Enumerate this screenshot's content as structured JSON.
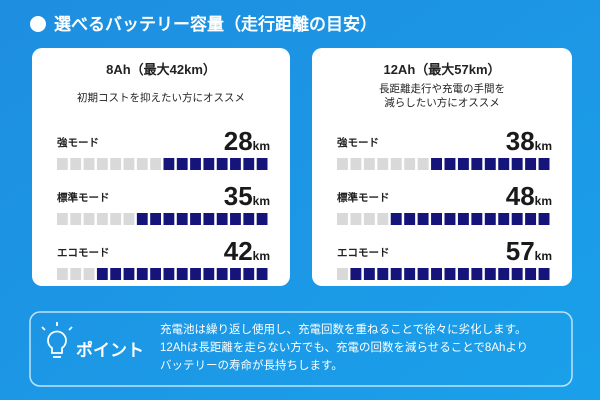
{
  "title": "選べるバッテリー容量（走行距離の目安）",
  "segments": 16,
  "cards": [
    {
      "title": "8Ah（最大42km）",
      "description": [
        "初期コストを抑えたい方にオススメ"
      ],
      "rows": [
        {
          "mode": "強モード",
          "distance": 28,
          "unit": "km",
          "filled": 8
        },
        {
          "mode": "標準モード",
          "distance": 35,
          "unit": "km",
          "filled": 10
        },
        {
          "mode": "エコモード",
          "distance": 42,
          "unit": "km",
          "filled": 13
        }
      ]
    },
    {
      "title": "12Ah（最大57km）",
      "description": [
        "長距離走行や充電の手間を",
        "減らしたい方にオススメ"
      ],
      "rows": [
        {
          "mode": "強モード",
          "distance": 38,
          "unit": "km",
          "filled": 9
        },
        {
          "mode": "標準モード",
          "distance": 48,
          "unit": "km",
          "filled": 12
        },
        {
          "mode": "エコモード",
          "distance": 57,
          "unit": "km",
          "filled": 15
        }
      ]
    }
  ],
  "point": {
    "label": "ポイント",
    "lines": [
      "充電池は繰り返し使用し、充電回数を重ねることで徐々に劣化します。",
      "12Ahは長距離を走らない方でも、充電の回数を減らせることで8Ahより",
      "バッテリーの寿命が長持ちします。"
    ]
  }
}
